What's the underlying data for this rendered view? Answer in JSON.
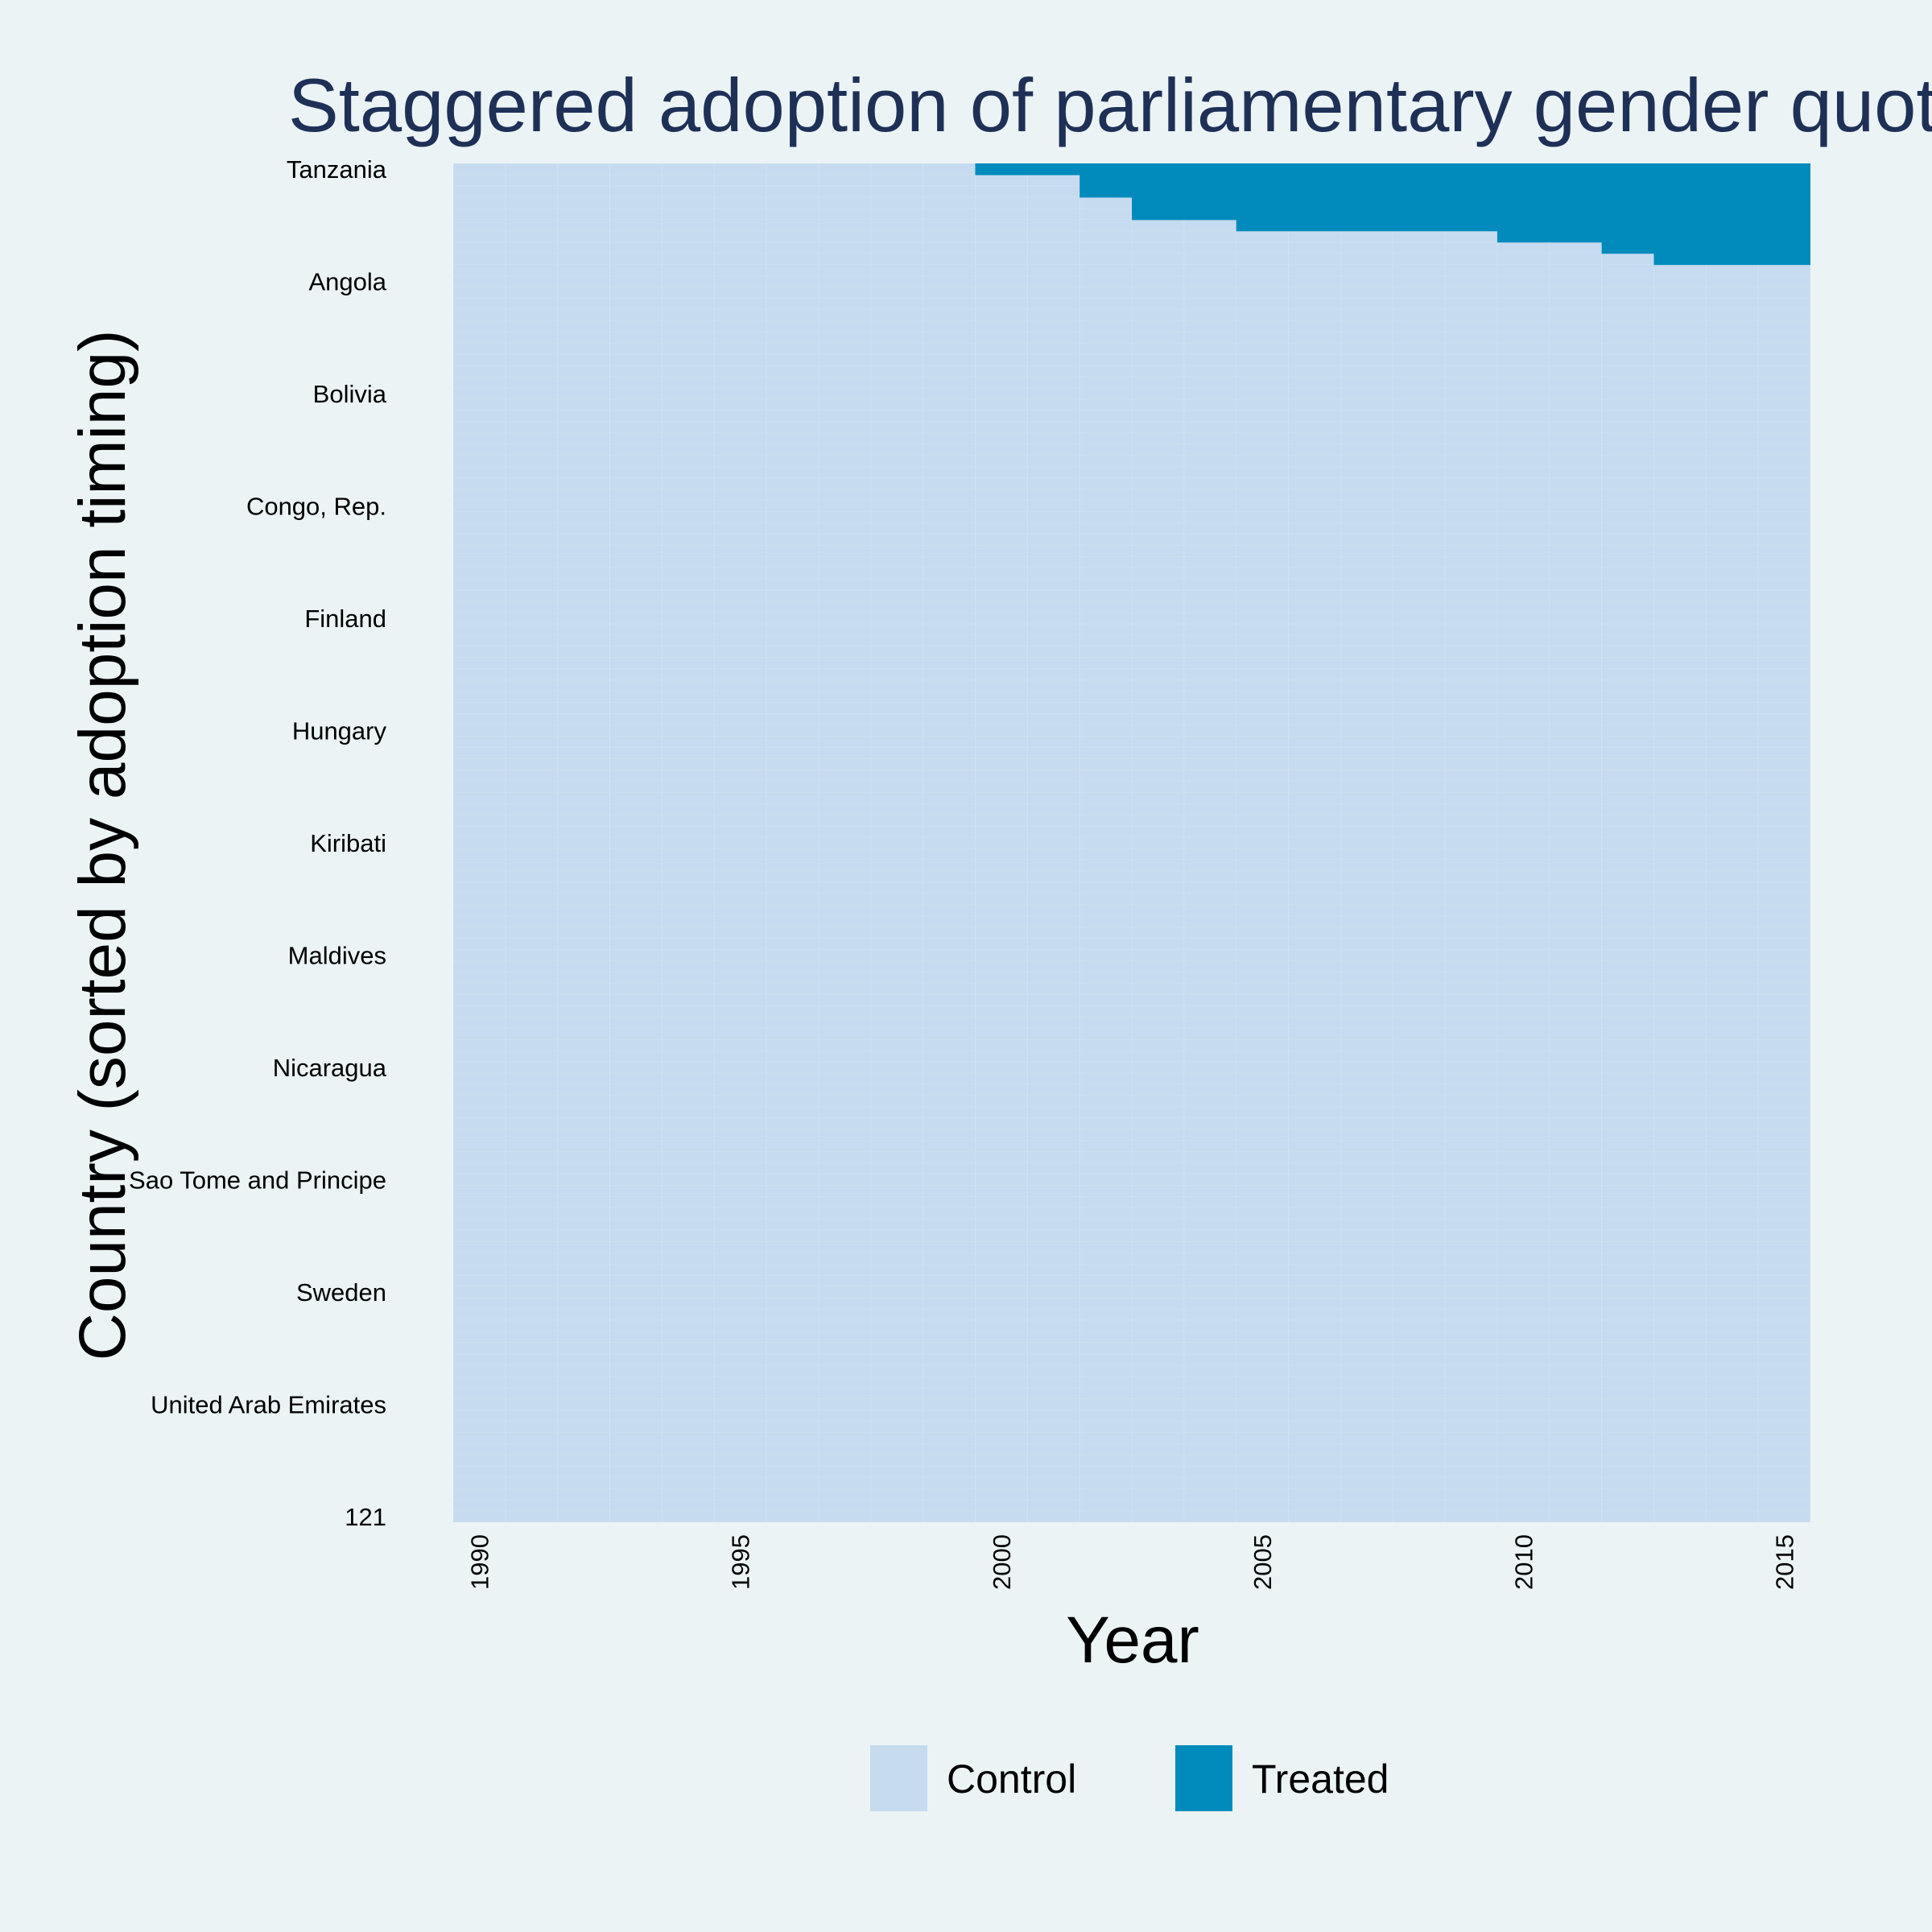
{
  "chart_data": {
    "type": "heatmap",
    "title": "Staggered adoption of parliamentary gender quota",
    "xlabel": "Year",
    "ylabel": "Country (sorted by adoption timing)",
    "years": [
      1990,
      1991,
      1992,
      1993,
      1994,
      1995,
      1996,
      1997,
      1998,
      1999,
      2000,
      2001,
      2002,
      2003,
      2004,
      2005,
      2006,
      2007,
      2008,
      2009,
      2010,
      2011,
      2012,
      2013,
      2014,
      2015
    ],
    "x_ticks": [
      "1990",
      "1995",
      "2000",
      "2005",
      "2010",
      "2015"
    ],
    "n_countries": 121,
    "y_tick_labels": [
      {
        "row": 1,
        "label": "Tanzania"
      },
      {
        "row": 11,
        "label": "Angola"
      },
      {
        "row": 21,
        "label": "Bolivia"
      },
      {
        "row": 31,
        "label": "Congo, Rep."
      },
      {
        "row": 41,
        "label": "Finland"
      },
      {
        "row": 51,
        "label": "Hungary"
      },
      {
        "row": 61,
        "label": "Kiribati"
      },
      {
        "row": 71,
        "label": "Maldives"
      },
      {
        "row": 81,
        "label": "Nicaragua"
      },
      {
        "row": 91,
        "label": "Sao Tome and Principe"
      },
      {
        "row": 101,
        "label": "Sweden"
      },
      {
        "row": 111,
        "label": "United Arab Emirates"
      },
      {
        "row": 121,
        "label": "121"
      }
    ],
    "treated_rows": [
      {
        "row": 1,
        "adoption_year": 2000
      },
      {
        "row": 2,
        "adoption_year": 2002
      },
      {
        "row": 3,
        "adoption_year": 2002
      },
      {
        "row": 4,
        "adoption_year": 2003
      },
      {
        "row": 5,
        "adoption_year": 2003
      },
      {
        "row": 6,
        "adoption_year": 2005
      },
      {
        "row": 7,
        "adoption_year": 2010
      },
      {
        "row": 8,
        "adoption_year": 2012
      },
      {
        "row": 9,
        "adoption_year": 2013
      }
    ],
    "legend": {
      "position": "bottom",
      "items": [
        {
          "label": "Control",
          "color": "#c6dbef"
        },
        {
          "label": "Treated",
          "color": "#008bbc"
        }
      ]
    },
    "colors": {
      "background": "#ebf3f5",
      "control": "#c6dbef",
      "treated": "#008bbc",
      "title": "#1f3057"
    }
  }
}
